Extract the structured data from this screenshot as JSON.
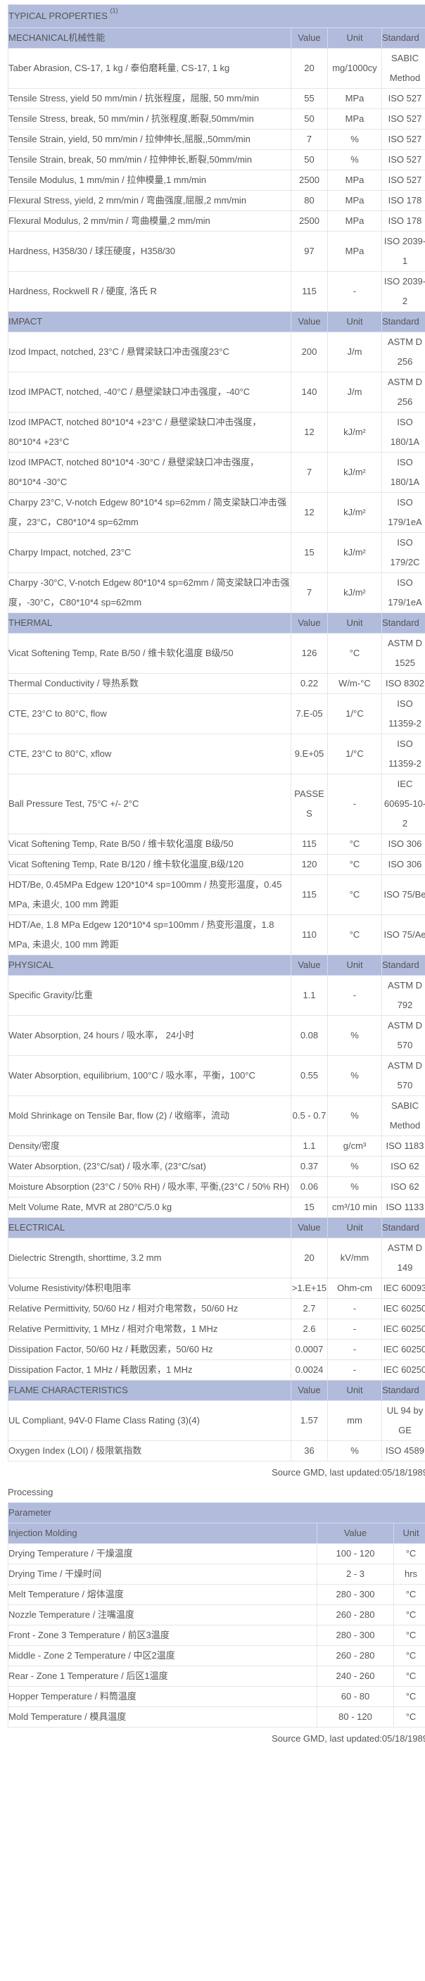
{
  "properties": {
    "title": "TYPICAL PROPERTIES",
    "title_note": "(1)",
    "sections": [
      {
        "name": "MECHANICAL机械性能",
        "value": "Value",
        "unit": "Unit",
        "standard": "Standard",
        "rows": [
          {
            "property": "Taber Abrasion, CS-17, 1 kg / 泰伯磨耗量, CS-17, 1 kg",
            "value": "20",
            "unit": "mg/1000cy",
            "standard": "SABIC Method"
          },
          {
            "property": "Tensile Stress, yield 50 mm/min / 抗张程度，屈服, 50 mm/min",
            "value": "55",
            "unit": "MPa",
            "standard": "ISO 527"
          },
          {
            "property": "Tensile Stress, break, 50 mm/min / 抗张程度,断裂,50mm/min",
            "value": "50",
            "unit": "MPa",
            "standard": "ISO 527"
          },
          {
            "property": "Tensile Strain, yield, 50 mm/min / 拉伸伸长,屈服,,50mm/min",
            "value": "7",
            "unit": "%",
            "standard": "ISO 527"
          },
          {
            "property": "Tensile Strain, break, 50 mm/min / 拉伸伸长,断裂,50mm/min",
            "value": "50",
            "unit": "%",
            "standard": "ISO 527"
          },
          {
            "property": "Tensile Modulus, 1 mm/min / 拉伸模量,1 mm/min",
            "value": "2500",
            "unit": "MPa",
            "standard": "ISO 527"
          },
          {
            "property": "Flexural Stress, yield, 2 mm/min / 弯曲强度,屈服,2 mm/min",
            "value": "80",
            "unit": "MPa",
            "standard": "ISO 178"
          },
          {
            "property": "Flexural Modulus, 2 mm/min / 弯曲模量,2 mm/min",
            "value": "2500",
            "unit": "MPa",
            "standard": "ISO 178"
          },
          {
            "property": "Hardness, H358/30 / 球压硬度，H358/30",
            "value": "97",
            "unit": "MPa",
            "standard": "ISO 2039-1"
          },
          {
            "property": "Hardness, Rockwell R / 硬度, 洛氏 R",
            "value": "115",
            "unit": "-",
            "standard": "ISO 2039-2"
          }
        ]
      },
      {
        "name": "IMPACT",
        "value": "Value",
        "unit": "Unit",
        "standard": "Standard",
        "rows": [
          {
            "property": "Izod Impact, notched, 23°C / 悬臂梁缺口冲击强度23°C",
            "value": "200",
            "unit": "J/m",
            "standard": "ASTM D 256"
          },
          {
            "property": "Izod IMPACT, notched, -40°C / 悬壁梁缺口冲击强度，-40°C",
            "value": "140",
            "unit": "J/m",
            "standard": "ASTM D 256"
          },
          {
            "property": "Izod IMPACT, notched 80*10*4 +23°C / 悬壁梁缺口冲击强度，80*10*4 +23°C",
            "value": "12",
            "unit": "kJ/m²",
            "standard": "ISO 180/1A"
          },
          {
            "property": "Izod IMPACT, notched 80*10*4 -30°C / 悬壁梁缺口冲击强度，80*10*4 -30°C",
            "value": "7",
            "unit": "kJ/m²",
            "standard": "ISO 180/1A"
          },
          {
            "property": "Charpy 23°C, V-notch Edgew 80*10*4 sp=62mm / 简支梁缺口冲击强度，23°C，C80*10*4 sp=62mm",
            "value": "12",
            "unit": "kJ/m²",
            "standard": "ISO 179/1eA"
          },
          {
            "property": "Charpy Impact, notched, 23°C",
            "value": "15",
            "unit": "kJ/m²",
            "standard": "ISO 179/2C"
          },
          {
            "property": "Charpy -30°C, V-notch Edgew 80*10*4 sp=62mm / 简支梁缺口冲击强度，-30°C，C80*10*4 sp=62mm",
            "value": "7",
            "unit": "kJ/m²",
            "standard": "ISO 179/1eA"
          }
        ]
      },
      {
        "name": "THERMAL",
        "value": "Value",
        "unit": "Unit",
        "standard": "Standard",
        "rows": [
          {
            "property": "Vicat Softening Temp, Rate B/50 / 维卡软化温度 B级/50",
            "value": "126",
            "unit": "°C",
            "standard": "ASTM D 1525"
          },
          {
            "property": "Thermal Conductivity / 导热系数",
            "value": "0.22",
            "unit": "W/m-°C",
            "standard": "ISO 8302"
          },
          {
            "property": "CTE, 23°C to 80°C, flow",
            "value": "7.E-05",
            "unit": "1/°C",
            "standard": "ISO 11359-2"
          },
          {
            "property": "CTE, 23°C to 80°C, xflow",
            "value": "9.E+05",
            "unit": "1/°C",
            "standard": "ISO 11359-2"
          },
          {
            "property": "Ball Pressure Test, 75°C +/- 2°C",
            "value": "PASSES",
            "unit": "-",
            "standard": "IEC 60695-10-2"
          },
          {
            "property": "Vicat Softening Temp, Rate B/50 / 维卡软化温度 B级/50",
            "value": "115",
            "unit": "°C",
            "standard": "ISO 306"
          },
          {
            "property": "Vicat Softening Temp, Rate B/120 / 维卡软化温度,B级/120",
            "value": "120",
            "unit": "°C",
            "standard": "ISO 306"
          },
          {
            "property": "HDT/Be, 0.45MPa Edgew 120*10*4 sp=100mm / 热变形温度，0.45 MPa, 未退火, 100 mm 跨距",
            "value": "115",
            "unit": "°C",
            "standard": "ISO 75/Be"
          },
          {
            "property": "HDT/Ae, 1.8 MPa Edgew 120*10*4 sp=100mm / 热变形温度，1.8 MPa, 未退火, 100 mm 跨距",
            "value": "110",
            "unit": "°C",
            "standard": "ISO 75/Ae"
          }
        ]
      },
      {
        "name": "PHYSICAL",
        "value": "Value",
        "unit": "Unit",
        "standard": "Standard",
        "rows": [
          {
            "property": "Specific Gravity/比重",
            "value": "1.1",
            "unit": "-",
            "standard": "ASTM D 792"
          },
          {
            "property": "Water Absorption, 24 hours / 吸水率， 24小时",
            "value": "0.08",
            "unit": "%",
            "standard": "ASTM D 570"
          },
          {
            "property": "Water Absorption, equilibrium, 100°C / 吸水率，平衡，100°C",
            "value": "0.55",
            "unit": "%",
            "standard": "ASTM D 570"
          },
          {
            "property": "Mold Shrinkage on Tensile Bar, flow (2) / 收缩率，流动",
            "value": "0.5 - 0.7",
            "unit": "%",
            "standard": "SABIC Method"
          },
          {
            "property": "Density/密度",
            "value": "1.1",
            "unit": "g/cm³",
            "standard": "ISO 1183"
          },
          {
            "property": "Water Absorption, (23°C/sat) / 吸水率, (23°C/sat)",
            "value": "0.37",
            "unit": "%",
            "standard": "ISO 62"
          },
          {
            "property": "Moisture Absorption (23°C / 50% RH) / 吸水率, 平衡,(23°C / 50% RH)",
            "value": "0.06",
            "unit": "%",
            "standard": "ISO 62"
          },
          {
            "property": "Melt Volume Rate, MVR at 280°C/5.0 kg",
            "value": "15",
            "unit": "cm³/10 min",
            "standard": "ISO 1133"
          }
        ]
      },
      {
        "name": "ELECTRICAL",
        "value": "Value",
        "unit": "Unit",
        "standard": "Standard",
        "rows": [
          {
            "property": "Dielectric Strength, shorttime, 3.2 mm",
            "value": "20",
            "unit": "kV/mm",
            "standard": "ASTM D 149"
          },
          {
            "property": "Volume Resistivity/体积电阻率",
            "value": ">1.E+15",
            "unit": "Ohm-cm",
            "standard": "IEC 60093"
          },
          {
            "property": "Relative Permittivity, 50/60 Hz / 相对介电常数，50/60 Hz",
            "value": "2.7",
            "unit": "-",
            "standard": "IEC 60250"
          },
          {
            "property": "Relative Permittivity, 1 MHz / 相对介电常数，1 MHz",
            "value": "2.6",
            "unit": "-",
            "standard": "IEC 60250"
          },
          {
            "property": "Dissipation Factor, 50/60 Hz / 耗散因素，50/60 Hz",
            "value": "0.0007",
            "unit": "-",
            "standard": "IEC 60250"
          },
          {
            "property": "Dissipation Factor, 1 MHz / 耗散因素，1 MHz",
            "value": "0.0024",
            "unit": "-",
            "standard": "IEC 60250"
          }
        ]
      },
      {
        "name": "FLAME CHARACTERISTICS",
        "value": "Value",
        "unit": "Unit",
        "standard": "Standard",
        "rows": [
          {
            "property": "UL Compliant, 94V-0 Flame Class Rating (3)(4)",
            "value": "1.57",
            "unit": "mm",
            "standard": "UL 94 by GE"
          },
          {
            "property": "Oxygen Index (LOI) / 极限氧指数",
            "value": "36",
            "unit": "%",
            "standard": "ISO 4589"
          }
        ]
      }
    ],
    "source": "Source GMD, last updated:05/18/1989"
  },
  "processing": {
    "label": "Processing",
    "parameter_header": "Parameter",
    "section": "Injection Molding",
    "value_header": "Value",
    "unit_header": "Unit",
    "rows": [
      {
        "parameter": "Drying Temperature / 干燥温度",
        "value": "100 - 120",
        "unit": "°C"
      },
      {
        "parameter": "Drying Time / 干燥时间",
        "value": "2 - 3",
        "unit": "hrs"
      },
      {
        "parameter": "Melt Temperature / 熔体温度",
        "value": "280 - 300",
        "unit": "°C"
      },
      {
        "parameter": "Nozzle Temperature / 注嘴温度",
        "value": "260 - 280",
        "unit": "°C"
      },
      {
        "parameter": "Front - Zone 3 Temperature / 前区3温度",
        "value": "280 - 300",
        "unit": "°C"
      },
      {
        "parameter": "Middle - Zone 2 Temperature / 中区2温度",
        "value": "260 - 280",
        "unit": "°C"
      },
      {
        "parameter": "Rear - Zone 1 Temperature / 后区1温度",
        "value": "240 - 260",
        "unit": "°C"
      },
      {
        "parameter": "Hopper Temperature / 料筒温度",
        "value": "60 - 80",
        "unit": "°C"
      },
      {
        "parameter": "Mold Temperature / 模具温度",
        "value": "80 - 120",
        "unit": "°C"
      }
    ],
    "source": "Source GMD, last updated:05/18/1989"
  },
  "colors": {
    "header_bg": "#b1bbdb",
    "text": "#555555",
    "border": "#e6e6e6",
    "outer_border": "#333333"
  }
}
